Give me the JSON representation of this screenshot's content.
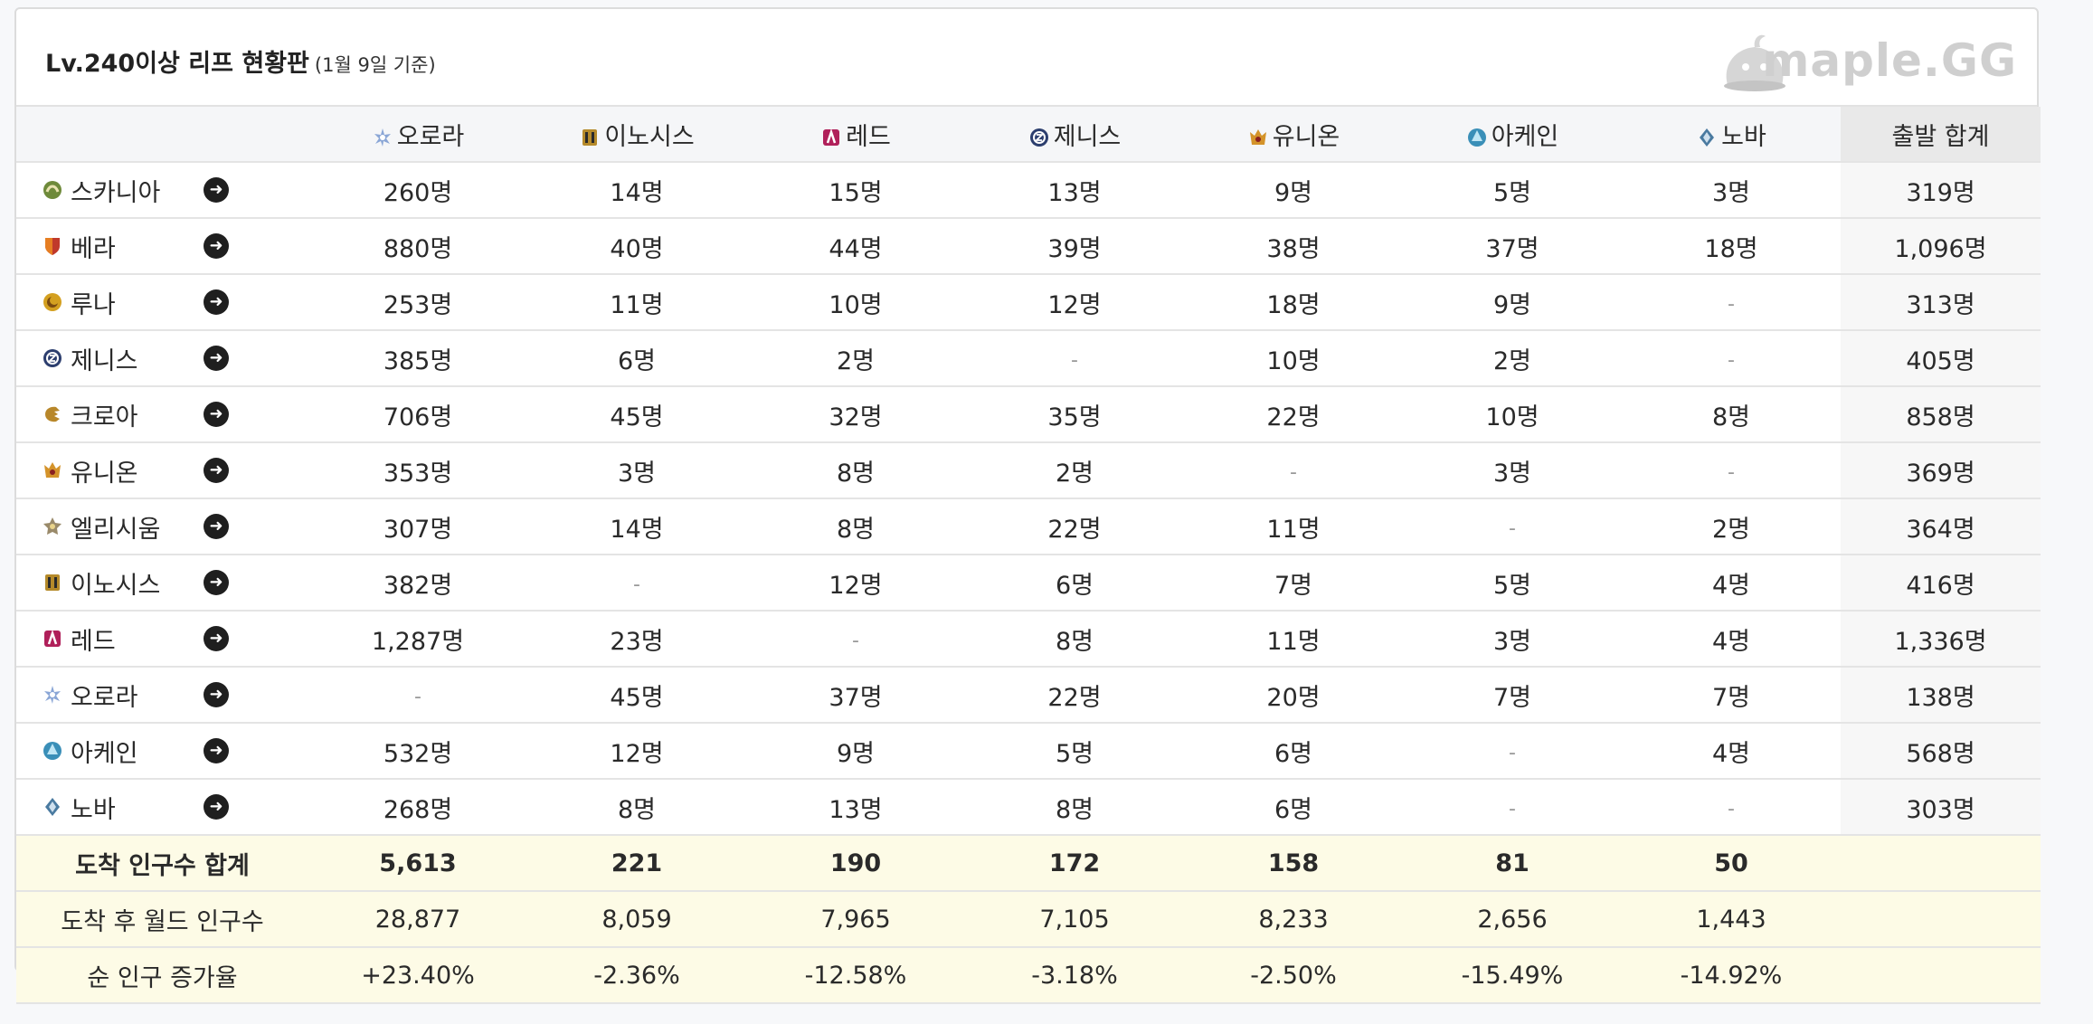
{
  "header": {
    "title": "Lv.240이상 리프 현황판",
    "subtitle": "(1월 9일 기준)",
    "logo_text": "maple.GG"
  },
  "columns": [
    {
      "label": "오로라",
      "icon": "aurora-icon",
      "color": "#8aa6d6"
    },
    {
      "label": "이노시스",
      "icon": "enosis-icon",
      "color": "#b58a2a"
    },
    {
      "label": "레드",
      "icon": "red-icon",
      "color": "#b0205a"
    },
    {
      "label": "제니스",
      "icon": "zenith-icon",
      "color": "#2c3e6e"
    },
    {
      "label": "유니온",
      "icon": "union-icon",
      "color": "#d4932a"
    },
    {
      "label": "아케인",
      "icon": "arcane-icon",
      "color": "#3a8fb8"
    },
    {
      "label": "노바",
      "icon": "nova-icon",
      "color": "#4a7aa0"
    }
  ],
  "total_col_label": "출발 합계",
  "rows": [
    {
      "name": "스카니아",
      "icon": "scania-icon",
      "color": "#6e8a3a",
      "values": [
        "260명",
        "14명",
        "15명",
        "13명",
        "9명",
        "5명",
        "3명"
      ],
      "total": "319명"
    },
    {
      "name": "베라",
      "icon": "bera-icon",
      "color": "#c0392b",
      "values": [
        "880명",
        "40명",
        "44명",
        "39명",
        "38명",
        "37명",
        "18명"
      ],
      "total": "1,096명"
    },
    {
      "name": "루나",
      "icon": "luna-icon",
      "color": "#d4a020",
      "values": [
        "253명",
        "11명",
        "10명",
        "12명",
        "18명",
        "9명",
        "-"
      ],
      "total": "313명"
    },
    {
      "name": "제니스",
      "icon": "zenith-icon",
      "color": "#2c3e6e",
      "values": [
        "385명",
        "6명",
        "2명",
        "-",
        "10명",
        "2명",
        "-"
      ],
      "total": "405명"
    },
    {
      "name": "크로아",
      "icon": "croa-icon",
      "color": "#b8872a",
      "values": [
        "706명",
        "45명",
        "32명",
        "35명",
        "22명",
        "10명",
        "8명"
      ],
      "total": "858명"
    },
    {
      "name": "유니온",
      "icon": "union-icon",
      "color": "#d4932a",
      "values": [
        "353명",
        "3명",
        "8명",
        "2명",
        "-",
        "3명",
        "-"
      ],
      "total": "369명"
    },
    {
      "name": "엘리시움",
      "icon": "elysium-icon",
      "color": "#9a8a6a",
      "values": [
        "307명",
        "14명",
        "8명",
        "22명",
        "11명",
        "-",
        "2명"
      ],
      "total": "364명"
    },
    {
      "name": "이노시스",
      "icon": "enosis-icon",
      "color": "#b58a2a",
      "values": [
        "382명",
        "-",
        "12명",
        "6명",
        "7명",
        "5명",
        "4명"
      ],
      "total": "416명"
    },
    {
      "name": "레드",
      "icon": "red-icon",
      "color": "#b0205a",
      "values": [
        "1,287명",
        "23명",
        "-",
        "8명",
        "11명",
        "3명",
        "4명"
      ],
      "total": "1,336명"
    },
    {
      "name": "오로라",
      "icon": "aurora-icon",
      "color": "#8aa6d6",
      "values": [
        "-",
        "45명",
        "37명",
        "22명",
        "20명",
        "7명",
        "7명"
      ],
      "total": "138명"
    },
    {
      "name": "아케인",
      "icon": "arcane-icon",
      "color": "#3a8fb8",
      "values": [
        "532명",
        "12명",
        "9명",
        "5명",
        "6명",
        "-",
        "4명"
      ],
      "total": "568명"
    },
    {
      "name": "노바",
      "icon": "nova-icon",
      "color": "#4a7aa0",
      "values": [
        "268명",
        "8명",
        "13명",
        "8명",
        "6명",
        "-",
        "-"
      ],
      "total": "303명"
    }
  ],
  "footer": [
    {
      "label": "도착 인구수 합계",
      "bold": true,
      "values": [
        "5,613",
        "221",
        "190",
        "172",
        "158",
        "81",
        "50"
      ]
    },
    {
      "label": "도착 후 월드 인구수",
      "bold": false,
      "values": [
        "28,877",
        "8,059",
        "7,965",
        "7,105",
        "8,233",
        "2,656",
        "1,443"
      ]
    },
    {
      "label": "순 인구 증가율",
      "bold": false,
      "values": [
        "+23.40%",
        "-2.36%",
        "-12.58%",
        "-3.18%",
        "-2.50%",
        "-15.49%",
        "-14.92%"
      ]
    }
  ],
  "arrow_glyph": "➜"
}
